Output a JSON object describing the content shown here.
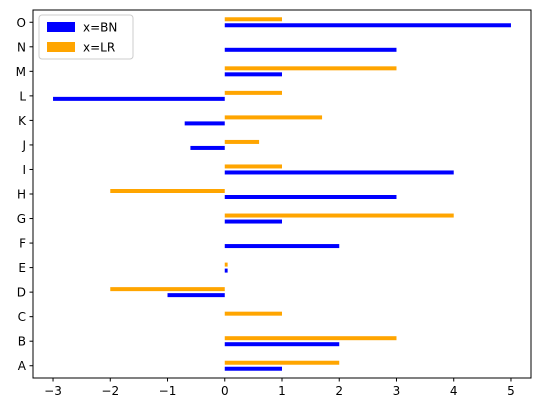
{
  "chart_data": {
    "type": "bar",
    "orientation": "horizontal",
    "categories": [
      "A",
      "B",
      "C",
      "D",
      "E",
      "F",
      "G",
      "H",
      "I",
      "J",
      "K",
      "L",
      "M",
      "N",
      "O"
    ],
    "series": [
      {
        "name": "x=BN",
        "color": "#0000ff",
        "values": [
          1,
          2,
          0,
          -1,
          0.05,
          2,
          1,
          3,
          4,
          -0.6,
          -0.7,
          -3,
          1,
          3,
          5
        ]
      },
      {
        "name": "x=LR",
        "color": "#ffa500",
        "values": [
          2,
          3,
          1,
          -2,
          0.05,
          0,
          4,
          -2,
          1,
          0.6,
          1.7,
          1,
          3,
          0,
          1
        ]
      }
    ],
    "xlim": [
      -3.35,
      5.35
    ],
    "xticks": [
      -3,
      -2,
      -1,
      0,
      1,
      2,
      3,
      4,
      5
    ],
    "xtick_labels": [
      "−3",
      "−2",
      "−1",
      "0",
      "1",
      "2",
      "3",
      "4",
      "5"
    ],
    "title": "",
    "xlabel": "",
    "ylabel": "",
    "grid": false,
    "legend_position": "top-left"
  }
}
